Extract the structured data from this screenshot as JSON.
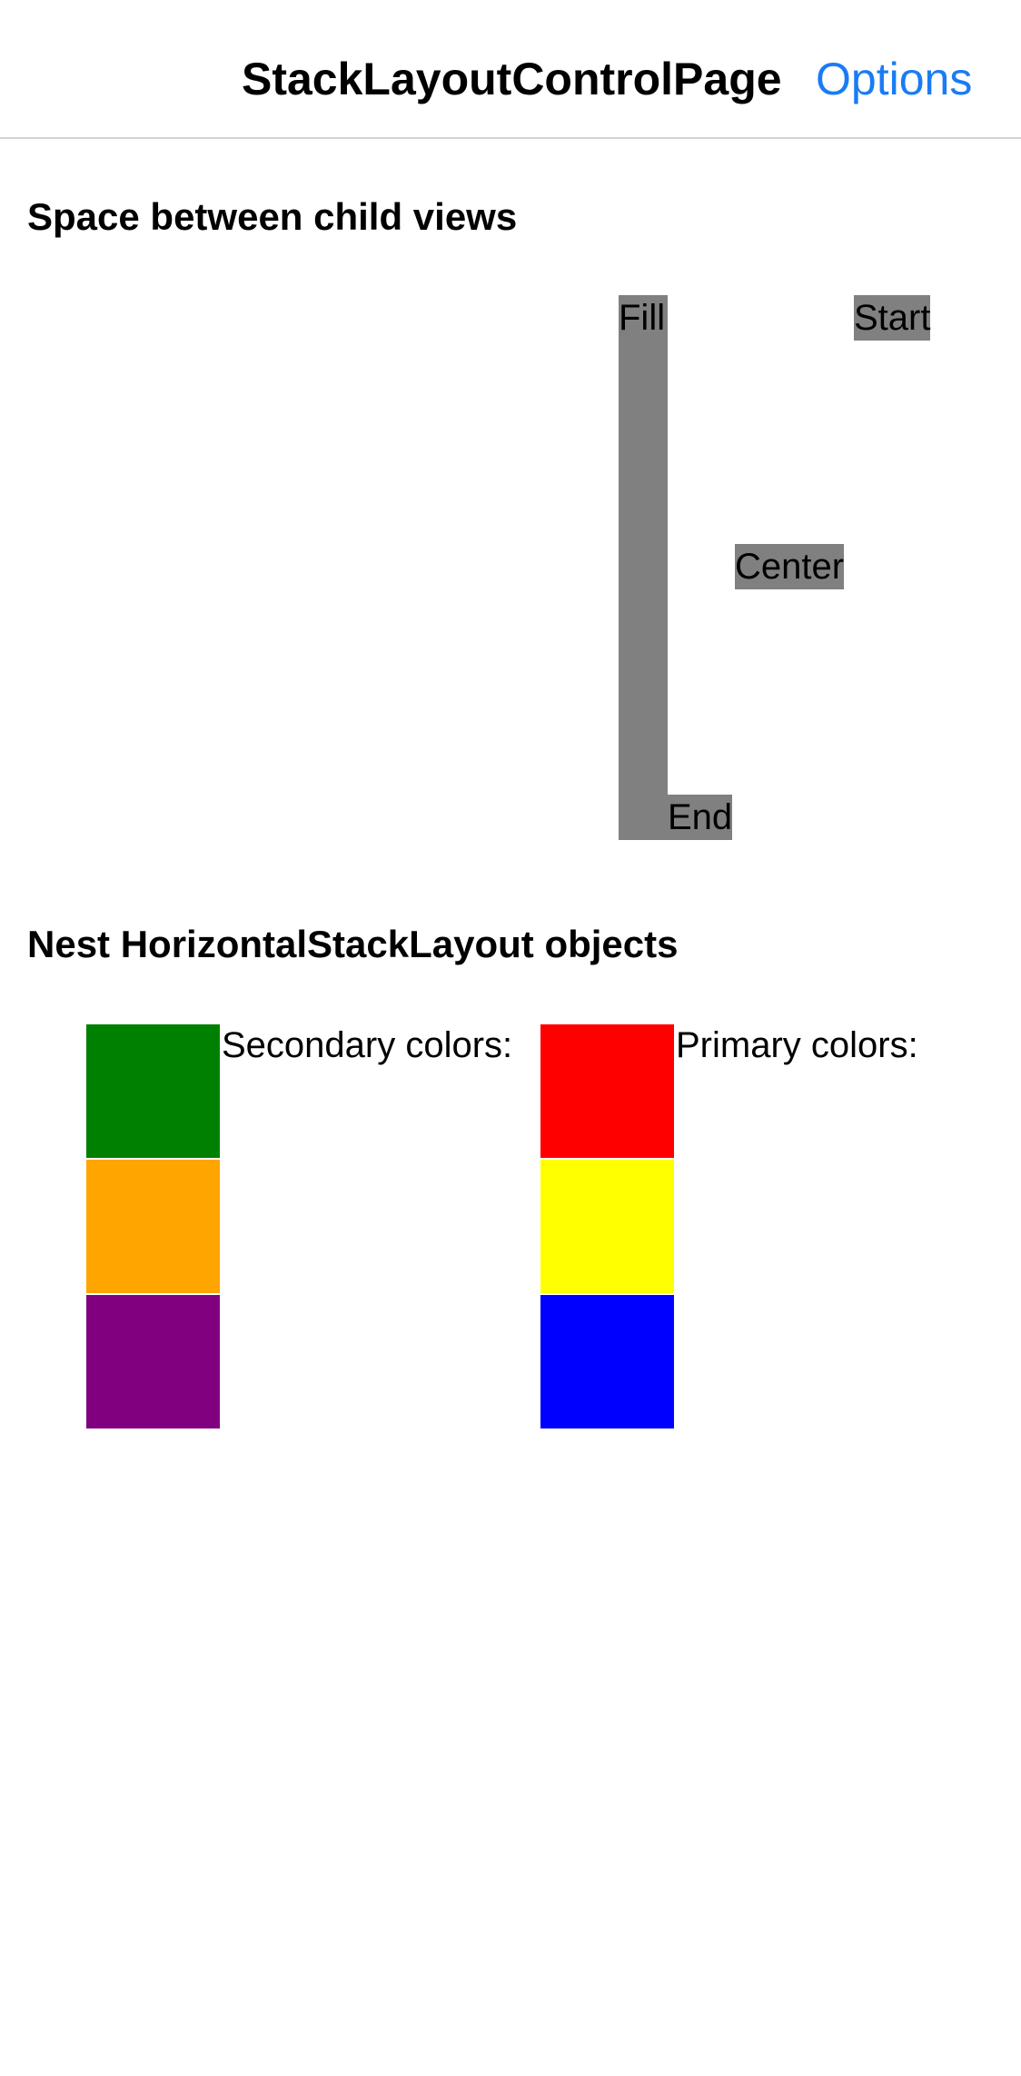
{
  "nav": {
    "title": "StackLayoutControlPage",
    "options_label": "Options",
    "accent_color": "#1a7cf5"
  },
  "section_spacing": {
    "title": "Space between child views",
    "labels": {
      "fill": "Fill",
      "start": "Start",
      "center": "Center",
      "end": "End"
    },
    "label_background": "#808080"
  },
  "section_nested": {
    "title": "Nest HorizontalStackLayout objects",
    "secondary": {
      "label": "Secondary colors:",
      "colors": [
        "#008000",
        "#ffa500",
        "#800080"
      ]
    },
    "primary": {
      "label": "Primary colors:",
      "colors": [
        "#ff0000",
        "#ffff00",
        "#0000ff"
      ]
    }
  }
}
